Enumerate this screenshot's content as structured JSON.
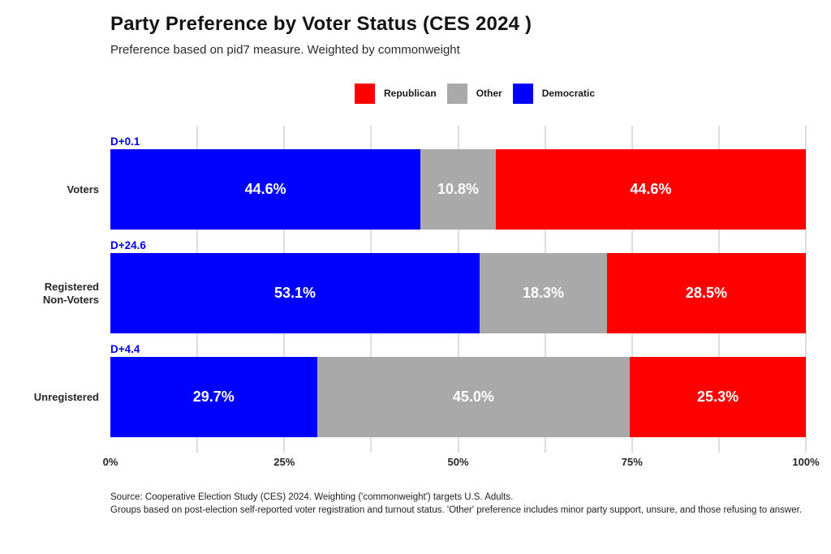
{
  "header": {
    "title": "Party Preference by Voter Status (CES 2024 )",
    "subtitle": "Preference based on pid7 measure. Weighted by commonweight"
  },
  "chart_data": {
    "type": "bar",
    "orientation": "horizontal",
    "stacked": true,
    "title": "Party Preference by Voter Status (CES 2024 )",
    "subtitle": "Preference based on pid7 measure. Weighted by commonweight",
    "xlim": [
      0,
      100
    ],
    "x_ticks": [
      "0%",
      "25%",
      "50%",
      "75%",
      "100%"
    ],
    "gridline_interval_pct": 12.5,
    "grid": true,
    "legend_position": "top-center",
    "legend": [
      {
        "name": "Republican",
        "color": "#ff0000"
      },
      {
        "name": "Other",
        "color": "#a9a9a9"
      },
      {
        "name": "Democratic",
        "color": "#0000ff"
      }
    ],
    "categories": [
      "Voters",
      "Registered\nNon-Voters",
      "Unregistered"
    ],
    "rows": [
      {
        "category": "Voters",
        "annotation": "D+0.1",
        "segments": [
          {
            "party": "Democratic",
            "value": 44.6,
            "label": "44.6%",
            "color": "#0000ff"
          },
          {
            "party": "Other",
            "value": 10.8,
            "label": "10.8%",
            "color": "#a9a9a9"
          },
          {
            "party": "Republican",
            "value": 44.6,
            "label": "44.6%",
            "color": "#ff0000"
          }
        ]
      },
      {
        "category": "Registered\nNon-Voters",
        "annotation": "D+24.6",
        "segments": [
          {
            "party": "Democratic",
            "value": 53.1,
            "label": "53.1%",
            "color": "#0000ff"
          },
          {
            "party": "Other",
            "value": 18.3,
            "label": "18.3%",
            "color": "#a9a9a9"
          },
          {
            "party": "Republican",
            "value": 28.5,
            "label": "28.5%",
            "color": "#ff0000"
          }
        ]
      },
      {
        "category": "Unregistered",
        "annotation": "D+4.4",
        "segments": [
          {
            "party": "Democratic",
            "value": 29.7,
            "label": "29.7%",
            "color": "#0000ff"
          },
          {
            "party": "Other",
            "value": 45.0,
            "label": "45.0%",
            "color": "#a9a9a9"
          },
          {
            "party": "Republican",
            "value": 25.3,
            "label": "25.3%",
            "color": "#ff0000"
          }
        ]
      }
    ]
  },
  "footer": {
    "line1": "Source: Cooperative Election Study (CES) 2024. Weighting ('commonweight') targets U.S. Adults.",
    "line2": "Groups based on post-election self-reported voter registration and turnout status. 'Other' preference includes minor party support, unsure, and those refusing to answer."
  }
}
